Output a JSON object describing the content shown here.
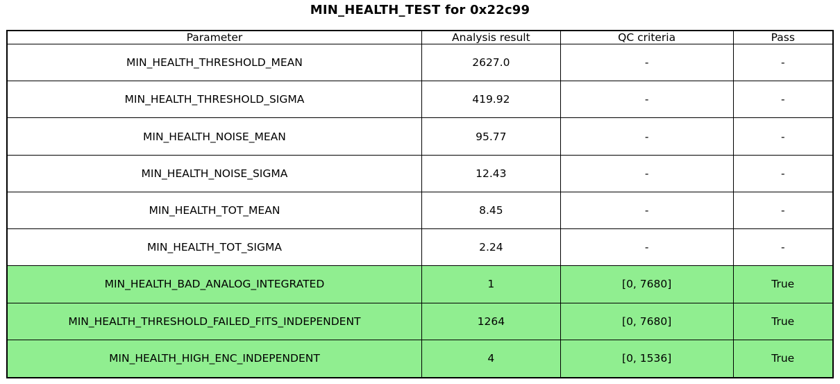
{
  "chart_data": {
    "type": "table",
    "title": "MIN_HEALTH_TEST for 0x22c99",
    "columns": [
      "Parameter",
      "Analysis result",
      "QC criteria",
      "Pass"
    ],
    "rows": [
      {
        "parameter": "MIN_HEALTH_THRESHOLD_MEAN",
        "analysis_result": "2627.0",
        "qc_criteria": "-",
        "pass": "-",
        "highlighted": false
      },
      {
        "parameter": "MIN_HEALTH_THRESHOLD_SIGMA",
        "analysis_result": "419.92",
        "qc_criteria": "-",
        "pass": "-",
        "highlighted": false
      },
      {
        "parameter": "MIN_HEALTH_NOISE_MEAN",
        "analysis_result": "95.77",
        "qc_criteria": "-",
        "pass": "-",
        "highlighted": false
      },
      {
        "parameter": "MIN_HEALTH_NOISE_SIGMA",
        "analysis_result": "12.43",
        "qc_criteria": "-",
        "pass": "-",
        "highlighted": false
      },
      {
        "parameter": "MIN_HEALTH_TOT_MEAN",
        "analysis_result": "8.45",
        "qc_criteria": "-",
        "pass": "-",
        "highlighted": false
      },
      {
        "parameter": "MIN_HEALTH_TOT_SIGMA",
        "analysis_result": "2.24",
        "qc_criteria": "-",
        "pass": "-",
        "highlighted": false
      },
      {
        "parameter": "MIN_HEALTH_BAD_ANALOG_INTEGRATED",
        "analysis_result": "1",
        "qc_criteria": "[0, 7680]",
        "pass": "True",
        "highlighted": true
      },
      {
        "parameter": "MIN_HEALTH_THRESHOLD_FAILED_FITS_INDEPENDENT",
        "analysis_result": "1264",
        "qc_criteria": "[0, 7680]",
        "pass": "True",
        "highlighted": true
      },
      {
        "parameter": "MIN_HEALTH_HIGH_ENC_INDEPENDENT",
        "analysis_result": "4",
        "qc_criteria": "[0, 1536]",
        "pass": "True",
        "highlighted": true
      }
    ],
    "colors": {
      "pass_row_background": "#90EE90",
      "default_row_background": "#ffffff",
      "border": "#000000",
      "text": "#000000"
    },
    "layout": {
      "legend": "none",
      "grid": "full-cell-borders"
    }
  }
}
